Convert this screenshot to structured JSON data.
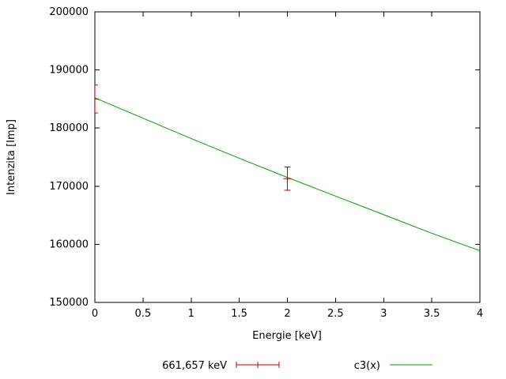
{
  "window": {
    "background": "#ffffff"
  },
  "chart_data": {
    "type": "line",
    "title": "",
    "xlabel": "Energie [keV]",
    "ylabel": "Intenzita [Imp]",
    "xlim": [
      0,
      4
    ],
    "ylim": [
      150000,
      200000
    ],
    "grid": false,
    "legend_position": "bottom-center",
    "axis_color": "#000000",
    "text_color": "#000000",
    "xticks": {
      "values": [
        0,
        0.5,
        1,
        1.5,
        2,
        2.5,
        3,
        3.5,
        4
      ],
      "labels": [
        "0",
        "0.5",
        "1",
        "1.5",
        "2",
        "2.5",
        "3",
        "3.5",
        "4"
      ]
    },
    "yticks": {
      "values": [
        150000,
        160000,
        170000,
        180000,
        190000,
        200000
      ],
      "labels": [
        "150000",
        "160000",
        "170000",
        "180000",
        "190000",
        "200000"
      ]
    },
    "series": [
      {
        "name": "661,657 keV",
        "type": "errorbars",
        "color": "#c00000",
        "points": [
          {
            "x": 0,
            "y": 185000,
            "yerr": 2400
          },
          {
            "x": 2,
            "y": 171300,
            "yerr": 2000
          }
        ]
      },
      {
        "name": "c3(x)",
        "type": "line",
        "color": "#00a000",
        "x": [
          0,
          0.5,
          1,
          1.5,
          2,
          2.5,
          3,
          3.5,
          4
        ],
        "y": [
          185200,
          181700,
          178200,
          174800,
          171500,
          168300,
          165100,
          161900,
          158900
        ]
      }
    ]
  }
}
